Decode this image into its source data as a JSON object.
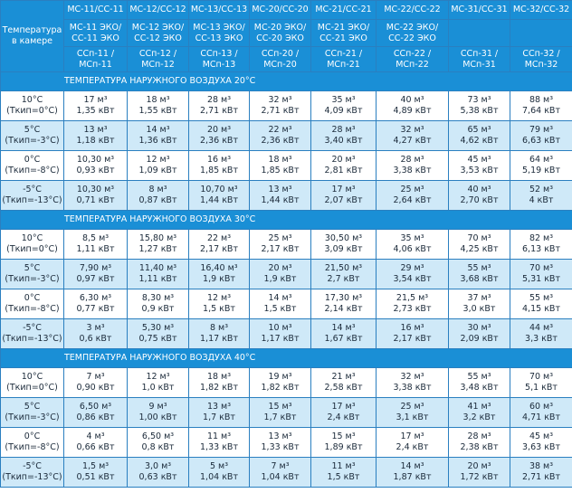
{
  "header": {
    "row_label": "Температура в камере",
    "models": [
      "МС-11/СС-11",
      "МС-12/СС-12",
      "МС-13/СС-13",
      "МС-20/СС-20",
      "МС-21/СС-21",
      "МС-22/СС-22",
      "МС-31/СС-31",
      "МС-32/СС-32"
    ],
    "eco": [
      "МС-11 ЭКО/ СС-11 ЭКО",
      "МС-12 ЭКО/ СС-12 ЭКО",
      "МС-13 ЭКО/ СС-13 ЭКО",
      "МС-20 ЭКО/ СС-20 ЭКО",
      "МС-21 ЭКО/ СС-21 ЭКО",
      "МС-22 ЭКО/ СС-22 ЭКО"
    ],
    "split": [
      "ССп-11 / МСп-11",
      "ССп-12 / МСп-12",
      "ССп-13 / МСп-13",
      "ССп-20 / МСп-20",
      "ССп-21 / МСп-21",
      "ССп-22 / МСп-22",
      "ССп-31 / МСп-31",
      "ССп-32 / МСп-32"
    ]
  },
  "sections": [
    {
      "title": "ТЕМПЕРАТУРА НАРУЖНОГО ВОЗДУХА 20°С",
      "rows": [
        {
          "temp": "10°С",
          "boil": "(Ткип=0°С)",
          "cells": [
            [
              "17 м³",
              "1,35 кВт"
            ],
            [
              "18 м³",
              "1,55 кВт"
            ],
            [
              "28 м³",
              "2,71 кВт"
            ],
            [
              "32 м³",
              "2,71 кВт"
            ],
            [
              "35 м³",
              "4,09 кВт"
            ],
            [
              "40 м³",
              "4,89 кВт"
            ],
            [
              "73 м³",
              "5,38 кВт"
            ],
            [
              "88 м³",
              "7,64 кВт"
            ]
          ]
        },
        {
          "temp": "5°С",
          "boil": "(Ткип=-3°С)",
          "cells": [
            [
              "13 м³",
              "1,18 кВт"
            ],
            [
              "14 м³",
              "1,36 кВт"
            ],
            [
              "20 м³",
              "2,36 кВт"
            ],
            [
              "22 м³",
              "2,36 кВт"
            ],
            [
              "28 м³",
              "3,40 кВт"
            ],
            [
              "32 м³",
              "4,27 кВт"
            ],
            [
              "65 м³",
              "4,62 кВт"
            ],
            [
              "79 м³",
              "6,63 кВт"
            ]
          ]
        },
        {
          "temp": "0°С",
          "boil": "(Ткип=-8°С)",
          "cells": [
            [
              "10,30 м³",
              "0,93 кВт"
            ],
            [
              "12 м³",
              "1,09 кВт"
            ],
            [
              "16 м³",
              "1,85 кВт"
            ],
            [
              "18 м³",
              "1,85 кВт"
            ],
            [
              "20 м³",
              "2,81 кВт"
            ],
            [
              "28 м³",
              "3,38 кВт"
            ],
            [
              "45 м³",
              "3,53 кВт"
            ],
            [
              "64 м³",
              "5,19 кВт"
            ]
          ]
        },
        {
          "temp": "-5°С",
          "boil": "(Ткип=-13°С)",
          "cells": [
            [
              "10,30 м³",
              "0,71 кВт"
            ],
            [
              "8 м³",
              "0,87 кВт"
            ],
            [
              "10,70 м³",
              "1,44 кВт"
            ],
            [
              "13 м³",
              "1,44 кВт"
            ],
            [
              "17 м³",
              "2,07 кВт"
            ],
            [
              "25 м³",
              "2,64 кВт"
            ],
            [
              "40 м³",
              "2,70 кВт"
            ],
            [
              "52 м³",
              "4 кВт"
            ]
          ]
        }
      ]
    },
    {
      "title": "ТЕМПЕРАТУРА НАРУЖНОГО ВОЗДУХА 30°С",
      "rows": [
        {
          "temp": "10°С",
          "boil": "(Ткип=0°С)",
          "cells": [
            [
              "8,5 м³",
              "1,11 кВт"
            ],
            [
              "15,80 м³",
              "1,27 кВт"
            ],
            [
              "22 м³",
              "2,17 кВт"
            ],
            [
              "25 м³",
              "2,17 кВт"
            ],
            [
              "30,50 м³",
              "3,09 кВт"
            ],
            [
              "35 м³",
              "4,06 кВт"
            ],
            [
              "70 м³",
              "4,25 кВт"
            ],
            [
              "82 м³",
              "6,13 кВт"
            ]
          ]
        },
        {
          "temp": "5°С",
          "boil": "(Ткип=-3°С)",
          "cells": [
            [
              "7,90 м³",
              "0,97 кВт"
            ],
            [
              "11,40 м³",
              "1,11 кВт"
            ],
            [
              "16,40 м³",
              "1,9 кВт"
            ],
            [
              "20 м³",
              "1,9 кВт"
            ],
            [
              "21,50 м³",
              "2,7 кВт"
            ],
            [
              "29 м³",
              "3,54 кВт"
            ],
            [
              "55 м³",
              "3,68 кВт"
            ],
            [
              "70 м³",
              "5,31 кВт"
            ]
          ]
        },
        {
          "temp": "0°С",
          "boil": "(Ткип=-8°С)",
          "cells": [
            [
              "6,30 м³",
              "0,77 кВт"
            ],
            [
              "8,30 м³",
              "0,9 кВт"
            ],
            [
              "12 м³",
              "1,5 кВт"
            ],
            [
              "14 м³",
              "1,5 кВт"
            ],
            [
              "17,30 м³",
              "2,14 кВт"
            ],
            [
              "21,5 м³",
              "2,73 кВт"
            ],
            [
              "37 м³",
              "3,0 кВт"
            ],
            [
              "55 м³",
              "4,15 кВт"
            ]
          ]
        },
        {
          "temp": "-5°С",
          "boil": "(Ткип=-13°С)",
          "cells": [
            [
              "3 м³",
              "0,6 кВт"
            ],
            [
              "5,30 м³",
              "0,75 кВт"
            ],
            [
              "8 м³",
              "1,17 кВт"
            ],
            [
              "10 м³",
              "1,17 кВт"
            ],
            [
              "14 м³",
              "1,67 кВт"
            ],
            [
              "16 м³",
              "2,17 кВт"
            ],
            [
              "30 м³",
              "2,09 кВт"
            ],
            [
              "44 м³",
              "3,3 кВт"
            ]
          ]
        }
      ]
    },
    {
      "title": "ТЕМПЕРАТУРА НАРУЖНОГО ВОЗДУХА 40°С",
      "rows": [
        {
          "temp": "10°С",
          "boil": "(Ткип=0°С)",
          "cells": [
            [
              "7 м³",
              "0,90 кВт"
            ],
            [
              "12 м³",
              "1,0 кВт"
            ],
            [
              "18 м³",
              "1,82 кВт"
            ],
            [
              "19 м³",
              "1,82 кВт"
            ],
            [
              "21 м³",
              "2,58 кВт"
            ],
            [
              "32 м³",
              "3,38 кВт"
            ],
            [
              "55 м³",
              "3,48 кВт"
            ],
            [
              "70 м³",
              "5,1 кВт"
            ]
          ]
        },
        {
          "temp": "5°С",
          "boil": "(Ткип=-3°С)",
          "cells": [
            [
              "6,50 м³",
              "0,86 кВт"
            ],
            [
              "9 м³",
              "1,00 кВт"
            ],
            [
              "13 м³",
              "1,7 кВт"
            ],
            [
              "15 м³",
              "1,7 кВт"
            ],
            [
              "17 м³",
              "2,4 кВт"
            ],
            [
              "25 м³",
              "3,1 кВт"
            ],
            [
              "41 м³",
              "3,2 кВт"
            ],
            [
              "60 м³",
              "4,71 кВт"
            ]
          ]
        },
        {
          "temp": "0°С",
          "boil": "(Ткип=-8°С)",
          "cells": [
            [
              "4 м³",
              "0,66 кВт"
            ],
            [
              "6,50 м³",
              "0,8 кВт"
            ],
            [
              "11 м³",
              "1,33 кВт"
            ],
            [
              "13 м³",
              "1,33 кВт"
            ],
            [
              "15 м³",
              "1,89 кВт"
            ],
            [
              "17 м³",
              "2,4 кВт"
            ],
            [
              "28 м³",
              "2,38 кВт"
            ],
            [
              "45 м³",
              "3,63 кВт"
            ]
          ]
        },
        {
          "temp": "-5°С",
          "boil": "(Ткип=-13°С)",
          "cells": [
            [
              "1,5 м³",
              "0,51 кВт"
            ],
            [
              "3,0 м³",
              "0,63 кВт"
            ],
            [
              "5 м³",
              "1,04 кВт"
            ],
            [
              "7 м³",
              "1,04 кВт"
            ],
            [
              "11 м³",
              "1,5 кВт"
            ],
            [
              "14 м³",
              "1,87 кВт"
            ],
            [
              "20 м³",
              "1,72 кВт"
            ],
            [
              "38 м³",
              "2,71 кВт"
            ]
          ]
        }
      ]
    }
  ]
}
